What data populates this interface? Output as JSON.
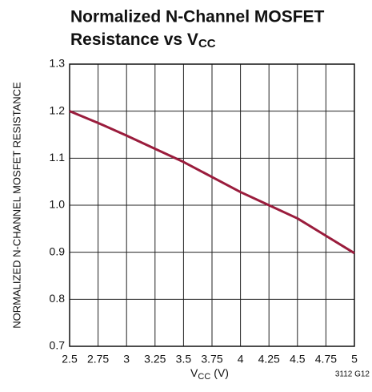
{
  "chart_data": {
    "type": "line",
    "title_lines": [
      "Normalized N-Channel MOSFET",
      "Resistance vs V"
    ],
    "title_subscript": "CC",
    "xlabel": {
      "main": "V",
      "sub": "CC",
      "unit": "(V)"
    },
    "ylabel": "NORMALIZED N-CHANNEL MOSFET RESISTANCE",
    "annotation": "3112 G12",
    "x": [
      2.5,
      2.75,
      3,
      3.25,
      3.5,
      3.75,
      4,
      4.25,
      4.5,
      4.75,
      5
    ],
    "series": [
      {
        "name": "Resistance",
        "color": "#9a1c3c",
        "values": [
          1.2,
          1.175,
          1.148,
          1.12,
          1.092,
          1.06,
          1.028,
          1.0,
          0.972,
          0.935,
          0.898
        ]
      }
    ],
    "xlim": [
      2.5,
      5
    ],
    "xticks": [
      2.5,
      2.75,
      3,
      3.25,
      3.5,
      3.75,
      4,
      4.25,
      4.5,
      4.75,
      5
    ],
    "ylim": [
      0.7,
      1.3
    ],
    "yticks": [
      0.7,
      0.8,
      0.9,
      {
        "value": 1,
        "label": "1.0"
      },
      1.1,
      1.2,
      1.3
    ],
    "grid": true
  }
}
